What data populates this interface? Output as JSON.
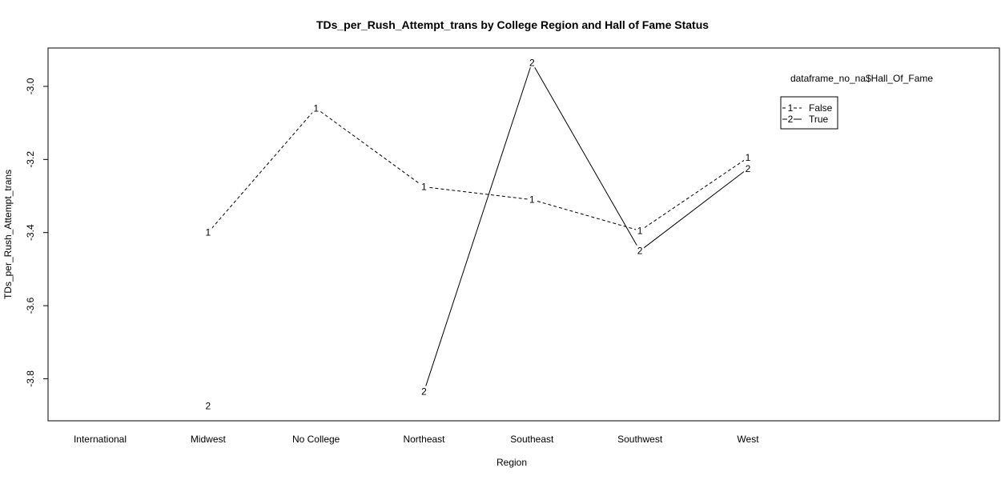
{
  "chart_data": {
    "type": "line",
    "title": "TDs_per_Rush_Attempt_trans by College Region and Hall of Fame Status",
    "xlabel": "Region",
    "ylabel": "TDs_per_Rush_Attempt_trans",
    "categories": [
      "International",
      "Midwest",
      "No College",
      "Northeast",
      "Southeast",
      "Southwest",
      "West"
    ],
    "yticks": [
      -3.0,
      -3.2,
      -3.4,
      -3.6,
      -3.8
    ],
    "ytick_labels": [
      "-3.0",
      "-3.2",
      "-3.4",
      "-3.6",
      "-3.8"
    ],
    "ylim": [
      -3.915,
      -2.895
    ],
    "legend": {
      "title": "dataframe_no_na$Hall_Of_Fame",
      "position": "top-right",
      "entries": [
        {
          "symbol": "1",
          "label": "False",
          "style": "dashed"
        },
        {
          "symbol": "2",
          "label": "True",
          "style": "solid"
        }
      ]
    },
    "series": [
      {
        "name": "False",
        "symbol": "1",
        "style": "dashed",
        "values": [
          null,
          -3.4,
          -3.06,
          -3.275,
          -3.31,
          -3.395,
          -3.195
        ]
      },
      {
        "name": "True",
        "symbol": "2",
        "style": "solid",
        "values": [
          null,
          -3.875,
          null,
          -3.835,
          -2.935,
          -3.45,
          -3.225
        ]
      }
    ]
  }
}
